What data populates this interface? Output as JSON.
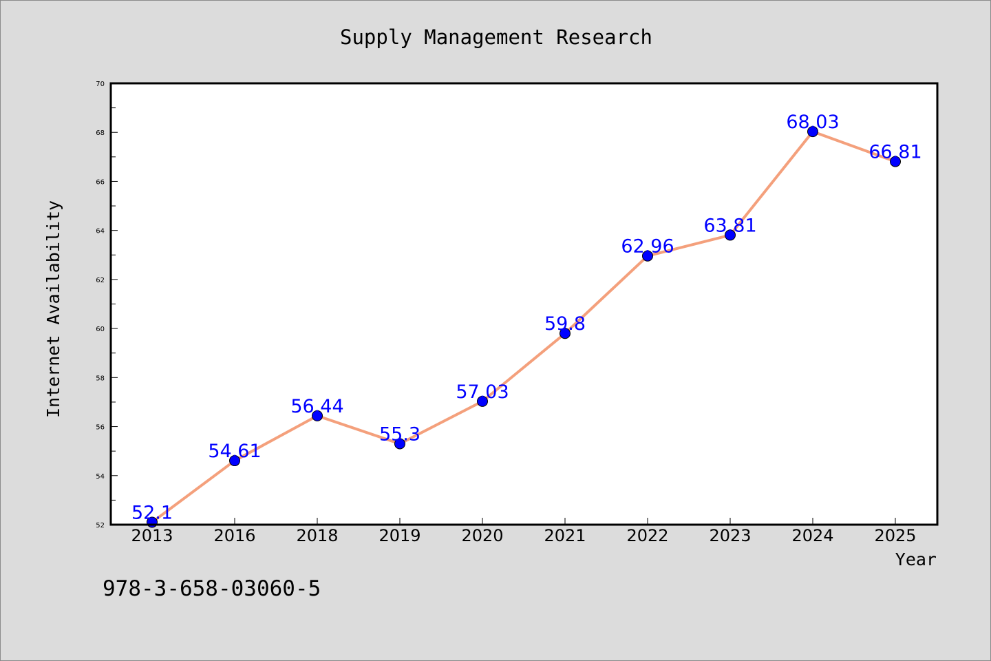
{
  "footer": {
    "isbn": "978-3-658-03060-5"
  },
  "chart_data": {
    "type": "line",
    "title": "Supply Management Research",
    "xlabel": "Year",
    "ylabel": "Internet Availability",
    "categories": [
      "2013",
      "2016",
      "2018",
      "2019",
      "2020",
      "2021",
      "2022",
      "2023",
      "2024",
      "2025"
    ],
    "series": [
      {
        "values": [
          52.1,
          54.61,
          56.44,
          55.3,
          57.03,
          59.8,
          62.96,
          63.81,
          68.03,
          66.81
        ],
        "data_labels": [
          "52.1",
          "54.61",
          "56.44",
          "55.3",
          "57.03",
          "59.8",
          "62.96",
          "63.81",
          "68.03",
          "66.81"
        ],
        "line_color": "#f4a07c",
        "marker_color": "#0000ff"
      }
    ],
    "ylim": [
      52,
      70
    ],
    "yticks": [
      "52",
      "54",
      "56",
      "58",
      "60",
      "62",
      "64",
      "66",
      "68",
      "70"
    ],
    "grid": false,
    "legend": "none",
    "colors": {
      "background": "#dcdcdc",
      "plot_background": "#ffffff",
      "axis": "#000000",
      "data_label": "#0000ff"
    }
  }
}
